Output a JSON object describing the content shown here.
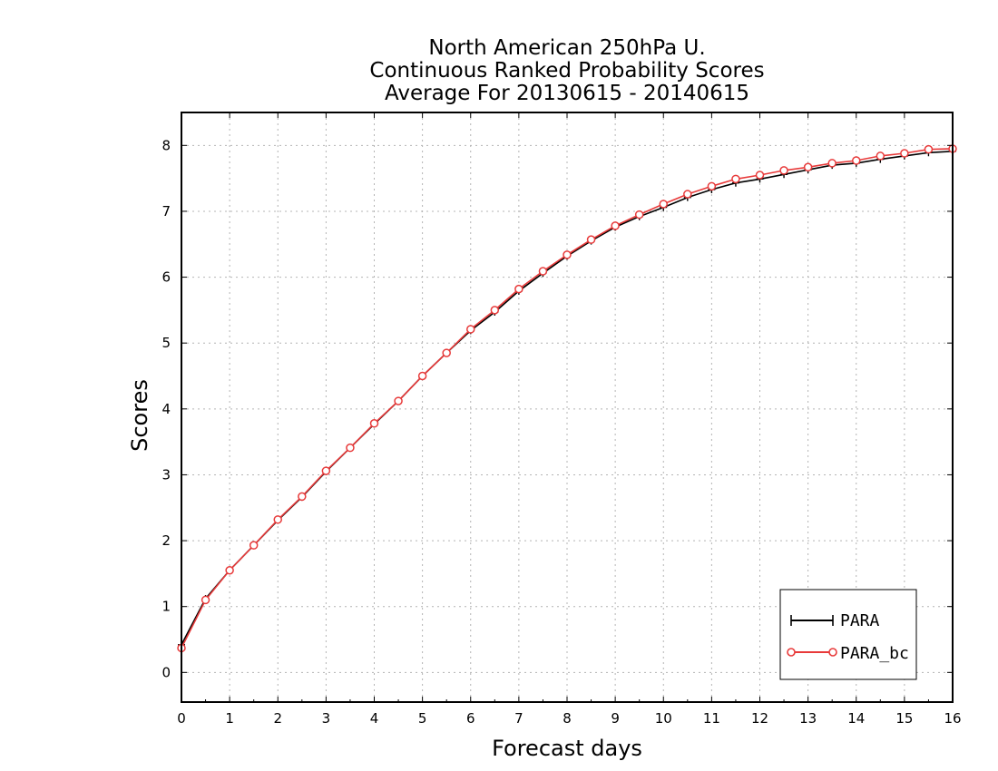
{
  "chart_data": {
    "type": "line",
    "title": [
      "North American 250hPa U.",
      "Continuous Ranked Probability Scores",
      "Average For 20130615 - 20140615"
    ],
    "xlabel": "Forecast days",
    "ylabel": "Scores",
    "xlim": [
      0,
      16
    ],
    "ylim": [
      -0.45,
      8.5
    ],
    "xticks": [
      0,
      1,
      2,
      3,
      4,
      5,
      6,
      7,
      8,
      9,
      10,
      11,
      12,
      13,
      14,
      15,
      16
    ],
    "yticks": [
      0,
      1,
      2,
      3,
      4,
      5,
      6,
      7,
      8
    ],
    "xtick_labels": [
      "0",
      "1",
      "2",
      "3",
      "4",
      "5",
      "6",
      "7",
      "8",
      "9",
      "10",
      "11",
      "12",
      "13",
      "14",
      "15",
      "16"
    ],
    "ytick_labels": [
      "0",
      "1",
      "2",
      "3",
      "4",
      "5",
      "6",
      "7",
      "8"
    ],
    "grid": true,
    "legend_position": "bottom-right",
    "x": [
      0,
      0.5,
      1,
      1.5,
      2,
      2.5,
      3,
      3.5,
      4,
      4.5,
      5,
      5.5,
      6,
      6.5,
      7,
      7.5,
      8,
      8.5,
      9,
      9.5,
      10,
      10.5,
      11,
      11.5,
      12,
      12.5,
      13,
      13.5,
      14,
      14.5,
      15,
      15.5,
      16
    ],
    "series": [
      {
        "name": "PARA",
        "color": "#000000",
        "marker": "plus",
        "values": [
          0.42,
          1.12,
          1.55,
          1.93,
          2.31,
          2.66,
          3.05,
          3.41,
          3.77,
          4.12,
          4.5,
          4.85,
          5.19,
          5.47,
          5.79,
          6.06,
          6.32,
          6.55,
          6.76,
          6.92,
          7.06,
          7.21,
          7.33,
          7.43,
          7.49,
          7.56,
          7.63,
          7.7,
          7.73,
          7.79,
          7.84,
          7.89,
          7.91
        ]
      },
      {
        "name": "PARA_bc",
        "color": "#e83a3a",
        "marker": "circle",
        "values": [
          0.37,
          1.1,
          1.55,
          1.93,
          2.32,
          2.67,
          3.06,
          3.41,
          3.78,
          4.12,
          4.5,
          4.85,
          5.21,
          5.5,
          5.82,
          6.09,
          6.34,
          6.57,
          6.78,
          6.95,
          7.11,
          7.26,
          7.38,
          7.49,
          7.55,
          7.62,
          7.67,
          7.73,
          7.77,
          7.84,
          7.88,
          7.94,
          7.95
        ]
      }
    ]
  }
}
